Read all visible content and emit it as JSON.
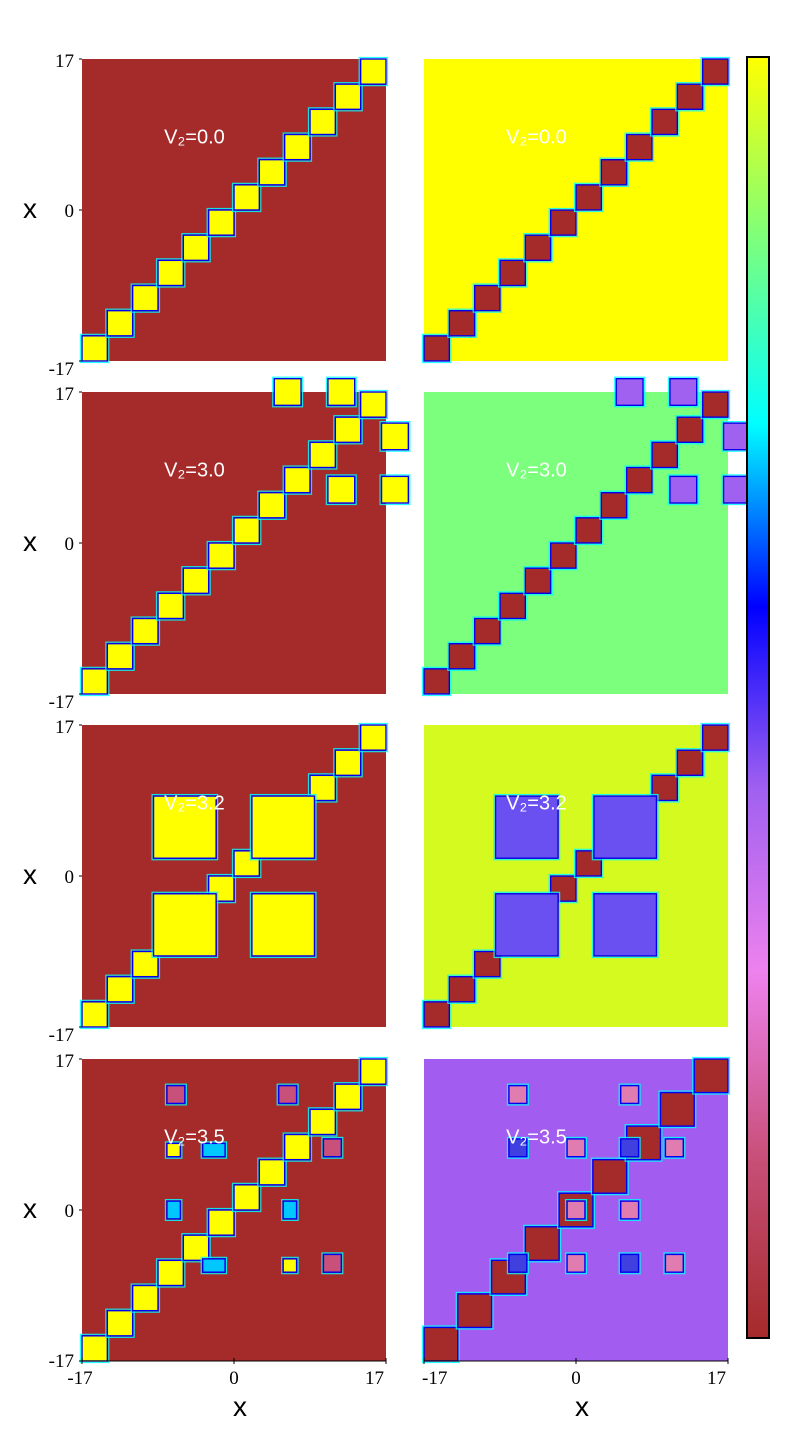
{
  "chart_data": {
    "type": "heatmap",
    "x_axis_label": "x",
    "y_axis_label": "x",
    "x_range": [
      -17,
      17
    ],
    "y_range": [
      -17,
      17
    ],
    "x_tick_labels": [
      "-17",
      "0",
      "17"
    ],
    "y_tick_labels": [
      "17",
      "0",
      "-17"
    ],
    "colorbar": {
      "orientation": "vertical",
      "stops": [
        "#a52a2a",
        "#c8507a",
        "#ee82ee",
        "#a060f0",
        "#0000ff",
        "#00ffff",
        "#7cff7c",
        "#ffff00"
      ]
    },
    "colors": {
      "dark_red": "#a52a2a",
      "yellow": "#ffff00",
      "light_green": "#7cff7c",
      "yellow_green": "#d4fa20",
      "purple": "#a25cf0",
      "blue_violet": "#6a50f0",
      "pink": "#e07cb0",
      "cyan": "#00ffff",
      "blue": "#0000ee"
    },
    "panels": [
      {
        "row": 0,
        "column": 0,
        "label": "V₂=0.0",
        "V2": 0.0,
        "background": "#a52a2a",
        "diag_fill": "#ffff00",
        "diagonal_block_count": 12,
        "off_diagonal_blocks": []
      },
      {
        "row": 0,
        "column": 1,
        "label": "V₂=0.0",
        "V2": 0.0,
        "background": "#ffff00",
        "diag_fill": "#a52a2a",
        "diagonal_block_count": 12,
        "off_diagonal_blocks": []
      },
      {
        "row": 1,
        "column": 0,
        "label": "V₂=3.0",
        "V2": 3.0,
        "background": "#a52a2a",
        "diag_fill": "#ffff00",
        "diagonal_block_count": 12,
        "off_diagonal_blocks": [
          {
            "x": [
              4.5,
              7.5
            ],
            "y": [
              15.5,
              18.5
            ],
            "fill": "#ffff00"
          },
          {
            "x": [
              10.5,
              13.5
            ],
            "y": [
              15.5,
              18.5
            ],
            "fill": "#ffff00"
          },
          {
            "x": [
              16.5,
              19.5
            ],
            "y": [
              10.5,
              13.5
            ],
            "fill": "#ffff00"
          },
          {
            "x": [
              10.5,
              13.5
            ],
            "y": [
              4.5,
              7.5
            ],
            "fill": "#ffff00"
          },
          {
            "x": [
              16.5,
              19.5
            ],
            "y": [
              4.5,
              7.5
            ],
            "fill": "#ffff00"
          }
        ]
      },
      {
        "row": 1,
        "column": 1,
        "label": "V₂=3.0",
        "V2": 3.0,
        "background": "#7cff7c",
        "diag_fill": "#a52a2a",
        "diagonal_block_count": 12,
        "off_diagonal_blocks": [
          {
            "x": [
              4.5,
              7.5
            ],
            "y": [
              15.5,
              18.5
            ],
            "fill": "#a060f0"
          },
          {
            "x": [
              10.5,
              13.5
            ],
            "y": [
              15.5,
              18.5
            ],
            "fill": "#a060f0"
          },
          {
            "x": [
              16.5,
              19.5
            ],
            "y": [
              10.5,
              13.5
            ],
            "fill": "#a060f0"
          },
          {
            "x": [
              10.5,
              13.5
            ],
            "y": [
              4.5,
              7.5
            ],
            "fill": "#a060f0"
          },
          {
            "x": [
              16.5,
              19.5
            ],
            "y": [
              4.5,
              7.5
            ],
            "fill": "#a060f0"
          }
        ]
      },
      {
        "row": 2,
        "column": 0,
        "label": "V₂=3.2",
        "V2": 3.2,
        "background": "#a52a2a",
        "diag_fill": "#ffff00",
        "diagonal_block_count": 12,
        "off_diagonal_blocks": [
          {
            "x": [
              -9,
              -2
            ],
            "y": [
              2,
              9
            ],
            "fill": "#ffff00"
          },
          {
            "x": [
              2,
              9
            ],
            "y": [
              2,
              9
            ],
            "fill": "#ffff00"
          },
          {
            "x": [
              -9,
              -2
            ],
            "y": [
              -9,
              -2
            ],
            "fill": "#ffff00"
          },
          {
            "x": [
              2,
              9
            ],
            "y": [
              -9,
              -2
            ],
            "fill": "#ffff00"
          }
        ]
      },
      {
        "row": 2,
        "column": 1,
        "label": "V₂=3.2",
        "V2": 3.2,
        "background": "#d4fa20",
        "diag_fill": "#a52a2a",
        "diagonal_block_count": 12,
        "off_diagonal_blocks": [
          {
            "x": [
              -9,
              -2
            ],
            "y": [
              2,
              9
            ],
            "fill": "#6a50f0"
          },
          {
            "x": [
              2,
              9
            ],
            "y": [
              2,
              9
            ],
            "fill": "#6a50f0"
          },
          {
            "x": [
              -9,
              -2
            ],
            "y": [
              -9,
              -2
            ],
            "fill": "#6a50f0"
          },
          {
            "x": [
              2,
              9
            ],
            "y": [
              -9,
              -2
            ],
            "fill": "#6a50f0"
          }
        ]
      },
      {
        "row": 3,
        "column": 0,
        "label": "V₂=3.5",
        "V2": 3.5,
        "background": "#a52a2a",
        "diag_fill": "#ffff00",
        "diagonal_block_count": 12,
        "off_diagonal_blocks": [
          {
            "x": [
              -7.5,
              -6
            ],
            "y": [
              6,
              7.5
            ],
            "fill": "#ffff00"
          },
          {
            "x": [
              -3.5,
              -1
            ],
            "y": [
              6,
              7.5
            ],
            "fill": "#00c8ff"
          },
          {
            "x": [
              -7.5,
              -6
            ],
            "y": [
              -1,
              1
            ],
            "fill": "#00c8ff"
          },
          {
            "x": [
              5.5,
              7
            ],
            "y": [
              -1,
              1
            ],
            "fill": "#00c8ff"
          },
          {
            "x": [
              -3.5,
              -1
            ],
            "y": [
              -7,
              -5.5
            ],
            "fill": "#00c8ff"
          },
          {
            "x": [
              5.5,
              7
            ],
            "y": [
              -7,
              -5.5
            ],
            "fill": "#ffff00"
          },
          {
            "x": [
              -7.5,
              -5.5
            ],
            "y": [
              12,
              14
            ],
            "fill": "#c8507a"
          },
          {
            "x": [
              5,
              7
            ],
            "y": [
              12,
              14
            ],
            "fill": "#c8507a"
          },
          {
            "x": [
              10,
              12
            ],
            "y": [
              6,
              8
            ],
            "fill": "#c8507a"
          },
          {
            "x": [
              10,
              12
            ],
            "y": [
              -7,
              -5
            ],
            "fill": "#c8507a"
          }
        ]
      },
      {
        "row": 3,
        "column": 1,
        "label": "V₂=3.5",
        "V2": 3.5,
        "background": "#a25cf0",
        "diag_fill": "#a52a2a",
        "diagonal_block_count": 9,
        "off_diagonal_blocks": [
          {
            "x": [
              -7.5,
              -5.5
            ],
            "y": [
              12,
              14
            ],
            "fill": "#e07cb0"
          },
          {
            "x": [
              5,
              7
            ],
            "y": [
              12,
              14
            ],
            "fill": "#e07cb0"
          },
          {
            "x": [
              -1,
              1
            ],
            "y": [
              6,
              8
            ],
            "fill": "#e07cb0"
          },
          {
            "x": [
              10,
              12
            ],
            "y": [
              6,
              8
            ],
            "fill": "#e07cb0"
          },
          {
            "x": [
              -1,
              1
            ],
            "y": [
              -1,
              1
            ],
            "fill": "#e07cb0"
          },
          {
            "x": [
              5,
              7
            ],
            "y": [
              -1,
              1
            ],
            "fill": "#e07cb0"
          },
          {
            "x": [
              -1,
              1
            ],
            "y": [
              -7,
              -5
            ],
            "fill": "#e07cb0"
          },
          {
            "x": [
              10,
              12
            ],
            "y": [
              -7,
              -5
            ],
            "fill": "#e07cb0"
          },
          {
            "x": [
              -7.5,
              -5.5
            ],
            "y": [
              6,
              8
            ],
            "fill": "#4040e0"
          },
          {
            "x": [
              5,
              7
            ],
            "y": [
              6,
              8
            ],
            "fill": "#4040e0"
          },
          {
            "x": [
              -7.5,
              -5.5
            ],
            "y": [
              -7,
              -5
            ],
            "fill": "#4040e0"
          },
          {
            "x": [
              5,
              7
            ],
            "y": [
              -7,
              -5
            ],
            "fill": "#4040e0"
          }
        ]
      }
    ]
  }
}
